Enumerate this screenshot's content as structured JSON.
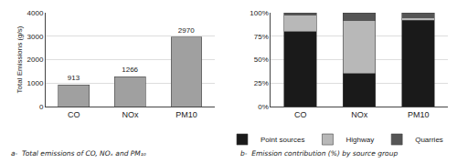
{
  "chart_data": [
    {
      "type": "bar",
      "categories": [
        "CO",
        "NOx",
        "PM10"
      ],
      "values": [
        913,
        1266,
        2970
      ],
      "color": "#a0a0a0",
      "data_labels": true,
      "ylabel": "Total Emissions (g/s)",
      "ylim": [
        0,
        4000
      ],
      "yticks": [
        0,
        1000,
        2000,
        3000,
        4000
      ],
      "grid": true,
      "caption": "a-  Total emissions of CO, NOₓ and PM₁₀"
    },
    {
      "type": "bar",
      "stacked": true,
      "categories": [
        "CO",
        "NOx",
        "PM10"
      ],
      "series": [
        {
          "name": "Point sources",
          "color": "#1a1a1a",
          "values": [
            80,
            35,
            92
          ]
        },
        {
          "name": "Highway",
          "color": "#b8b8b8",
          "values": [
            18,
            57,
            3
          ]
        },
        {
          "name": "Quarries",
          "color": "#555555",
          "values": [
            2,
            8,
            5
          ]
        }
      ],
      "ylim": [
        0,
        100
      ],
      "yticks": [
        {
          "value": 0,
          "label": "0%"
        },
        {
          "value": 25,
          "label": "25%"
        },
        {
          "value": 50,
          "label": "50%"
        },
        {
          "value": 75,
          "label": "75%"
        },
        {
          "value": 100,
          "label": "100%"
        }
      ],
      "grid": true,
      "legend": "bottom",
      "caption": "b-  Emission contribution (%) by source group"
    }
  ]
}
